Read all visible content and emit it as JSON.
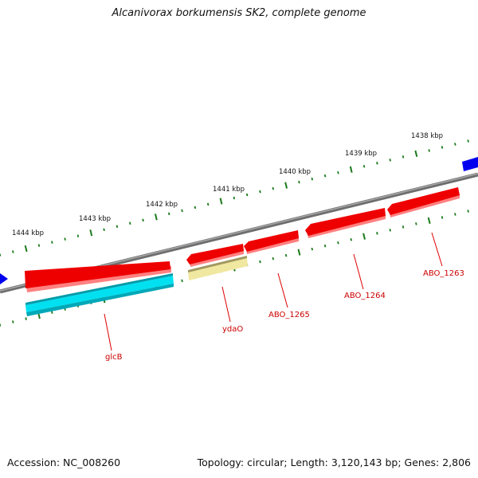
{
  "title": "Alcanivorax borkumensis SK2, complete genome",
  "footer": {
    "accession": "Accession: NC_008260",
    "summary": "Topology: circular; Length: 3,120,143 bp; Genes: 2,806"
  },
  "scale_labels": [
    "1438 kbp",
    "1439 kbp",
    "1440 kbp",
    "1441 kbp",
    "1442 kbp",
    "1443 kbp",
    "1444 kbp"
  ],
  "genes": [
    {
      "label": "glcB"
    },
    {
      "label": "ydaO"
    },
    {
      "label": "ABO_1265"
    },
    {
      "label": "ABO_1264"
    },
    {
      "label": "ABO_1263"
    }
  ],
  "colors": {
    "backbone": "#808080",
    "cds": "#ee0000",
    "cds_shadow": "#ff8080",
    "other_feature": "#00e0f0",
    "rna_feature": "#f0e8a0",
    "flank_feature": "#0000ee",
    "tick": "#1a7a1a",
    "gene_label": "#cc0000"
  }
}
